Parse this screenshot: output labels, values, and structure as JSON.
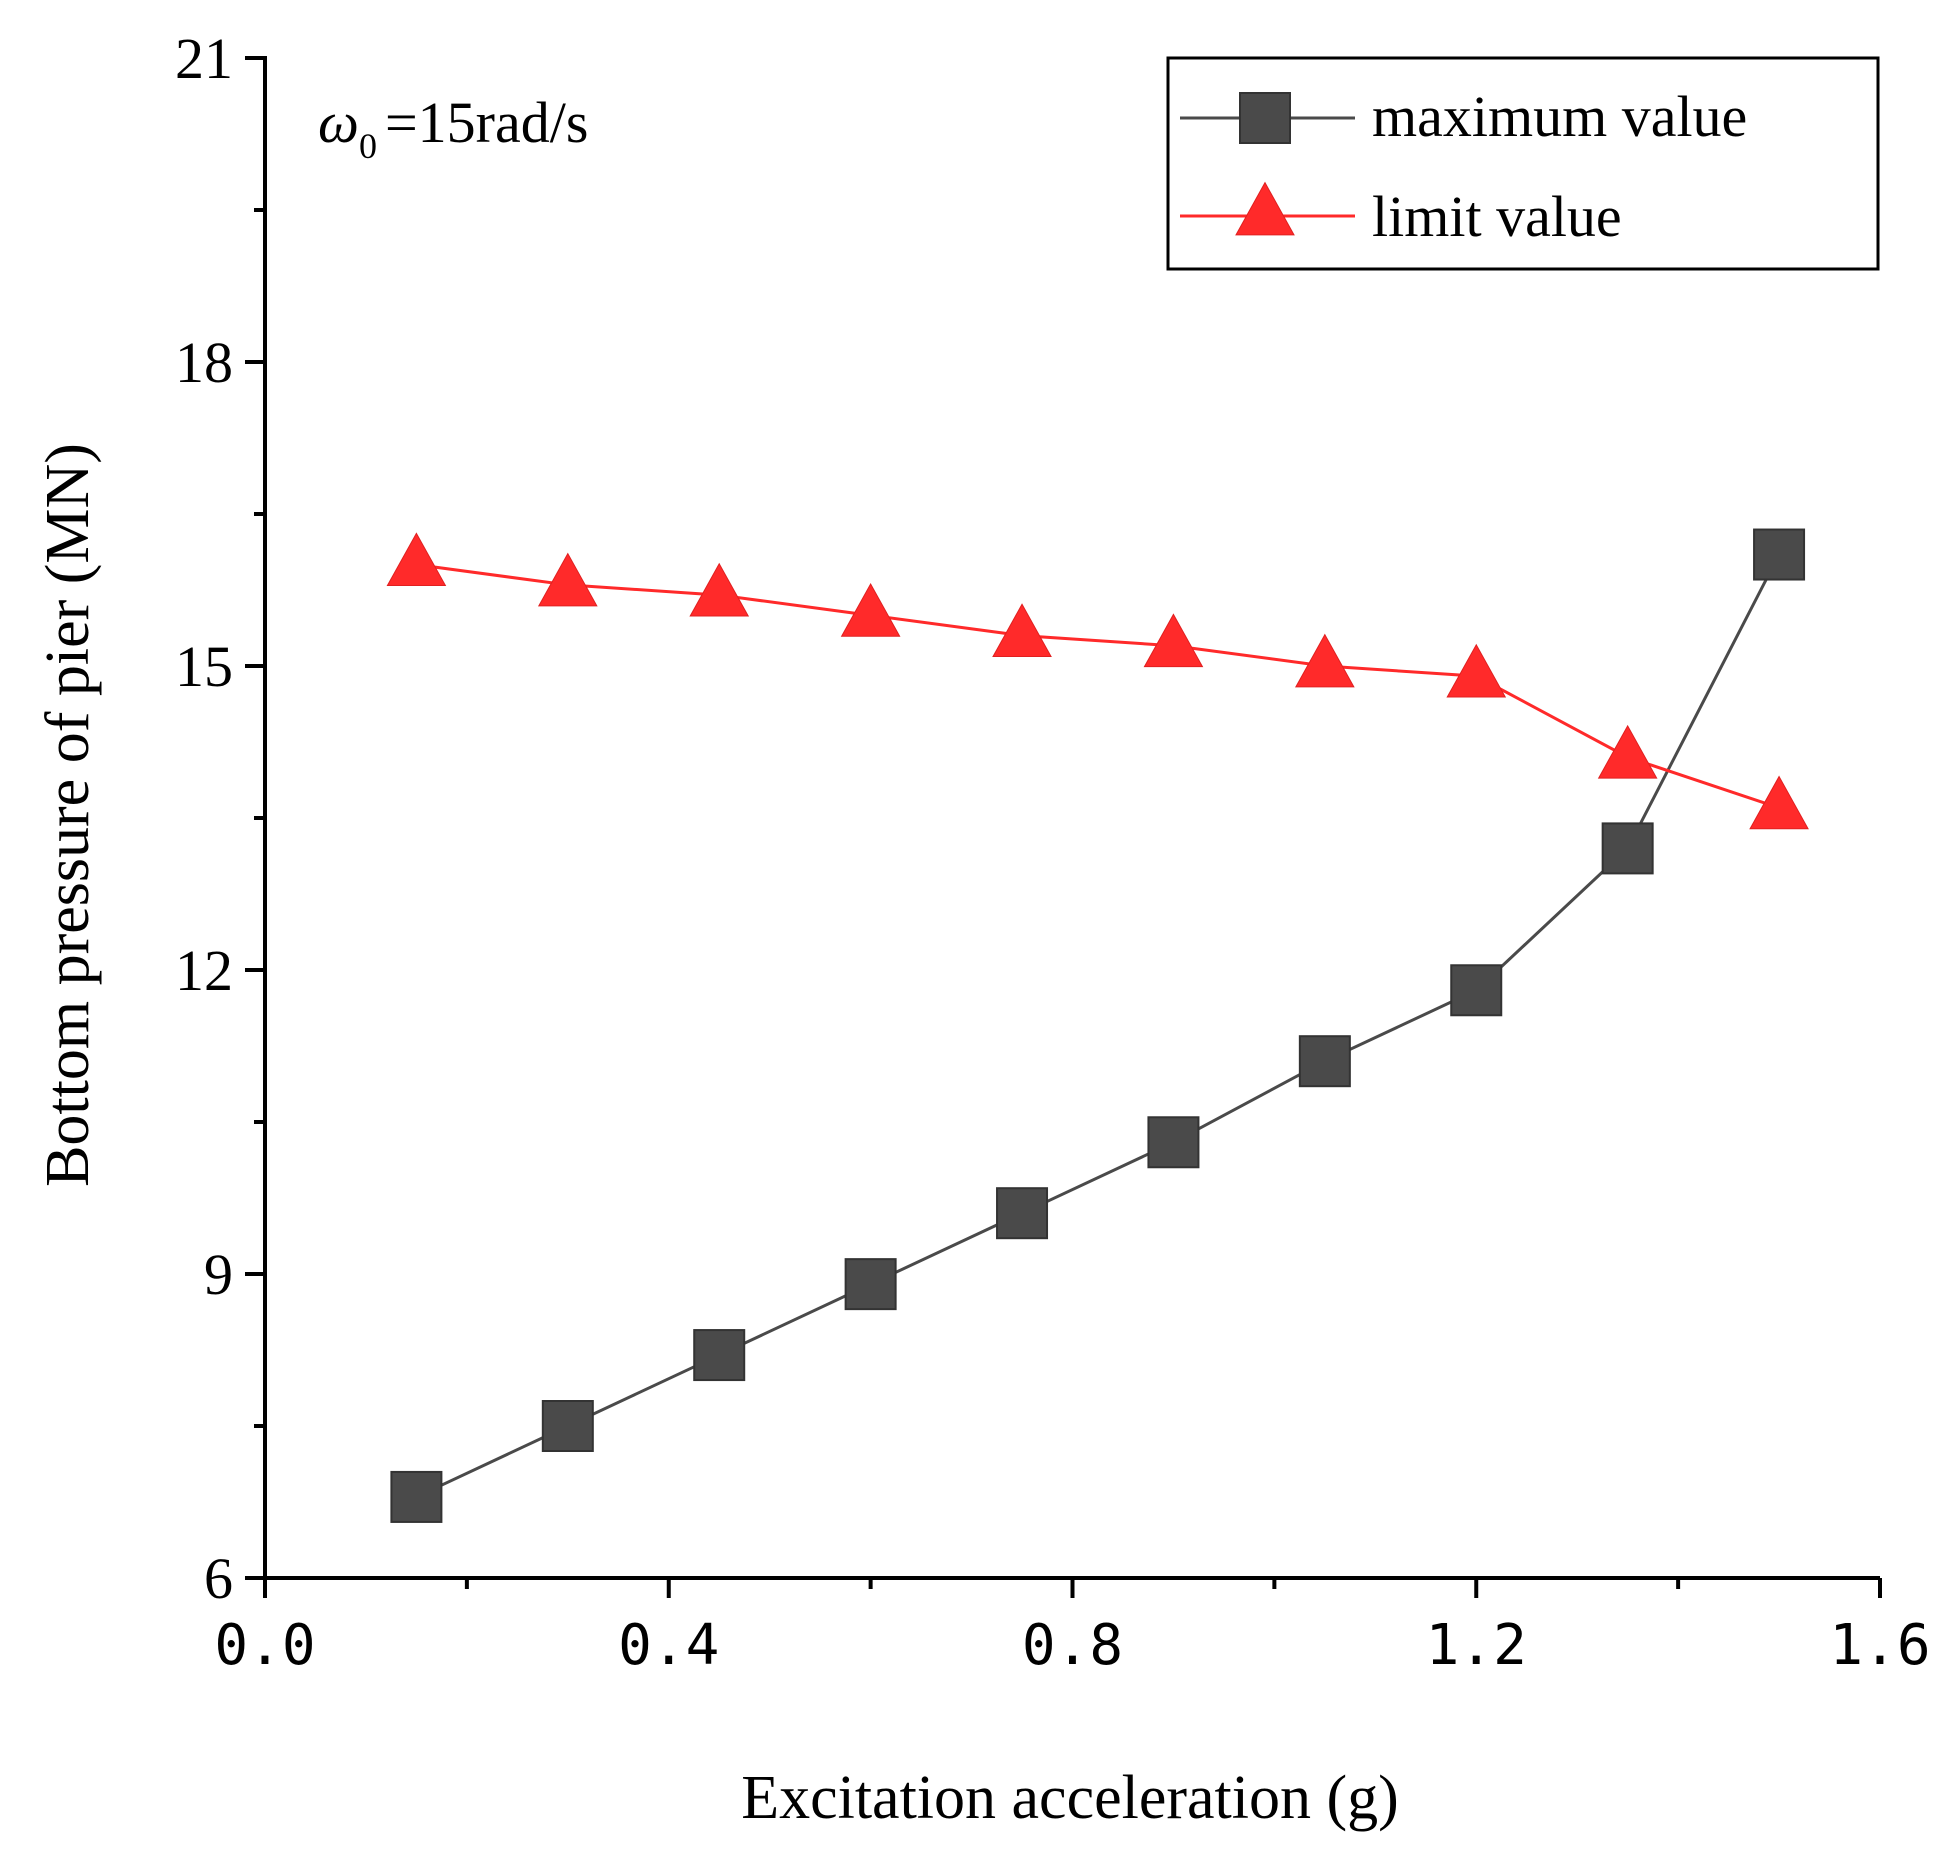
{
  "chart_data": {
    "type": "line",
    "title": "",
    "annotation": {
      "symbol": "ω",
      "subscript": "0",
      "text": "=15rad/s"
    },
    "xlabel": "Excitation acceleration (g)",
    "ylabel": "Bottom pressure of pier (MN)",
    "xlim": [
      0.0,
      1.6
    ],
    "ylim": [
      6,
      21
    ],
    "x_ticks": [
      0.0,
      0.4,
      0.8,
      1.2,
      1.6
    ],
    "x_tick_labels": [
      "0.0",
      "0.4",
      "0.8",
      "1.2",
      "1.6"
    ],
    "y_ticks": [
      6,
      9,
      12,
      15,
      18,
      21
    ],
    "y_tick_labels": [
      "6",
      "9",
      "12",
      "15",
      "18",
      "21"
    ],
    "x_minor_ticks": [
      0.2,
      0.6,
      1.0,
      1.4
    ],
    "y_minor_ticks": [
      7.5,
      10.5,
      13.5,
      16.5,
      19.5
    ],
    "grid": false,
    "legend_position": "top-right",
    "x": [
      0.15,
      0.3,
      0.45,
      0.6,
      0.75,
      0.9,
      1.05,
      1.2,
      1.35,
      1.5
    ],
    "series": [
      {
        "name": "maximum value",
        "marker": "square",
        "color": "#4a4a4a",
        "values": [
          6.8,
          7.5,
          8.2,
          8.9,
          9.6,
          10.3,
          11.1,
          11.8,
          13.2,
          16.1
        ]
      },
      {
        "name": "limit value",
        "marker": "triangle",
        "color": "#ff2a2a",
        "values": [
          16.0,
          15.8,
          15.7,
          15.5,
          15.3,
          15.2,
          15.0,
          14.9,
          14.1,
          13.6
        ]
      }
    ]
  }
}
